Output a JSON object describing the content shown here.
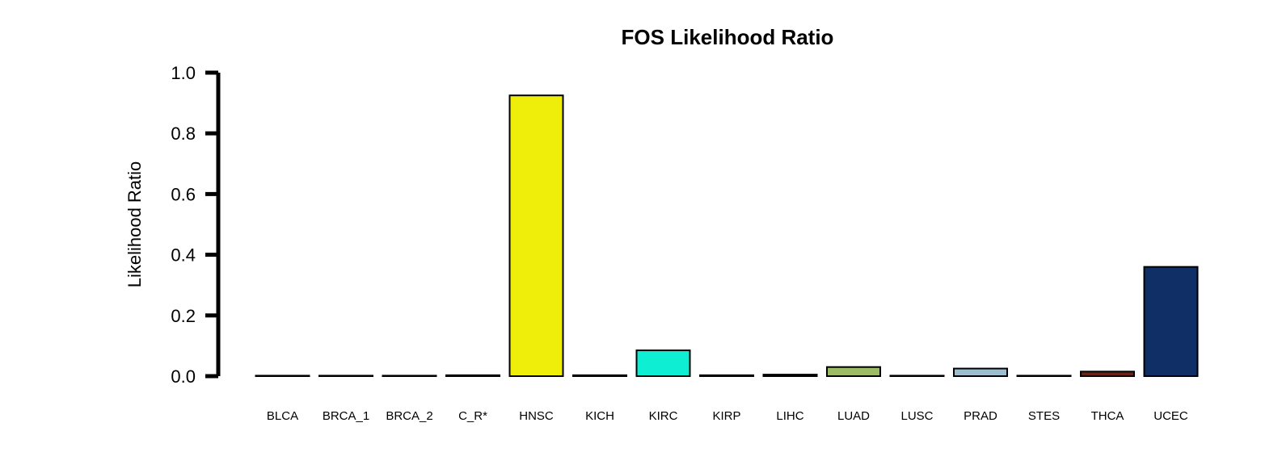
{
  "chart_data": {
    "type": "bar",
    "title": "FOS Likelihood Ratio",
    "xlabel": "",
    "ylabel": "Likelihood Ratio",
    "ylim": [
      0,
      1.0
    ],
    "yticks": [
      "0.0",
      "0.2",
      "0.4",
      "0.6",
      "0.8",
      "1.0"
    ],
    "grid": false,
    "categories": [
      "BLCA",
      "BRCA_1",
      "BRCA_2",
      "C_R*",
      "HNSC",
      "KICH",
      "KIRC",
      "KIRP",
      "LIHC",
      "LUAD",
      "LUSC",
      "PRAD",
      "STES",
      "THCA",
      "UCEC"
    ],
    "values": [
      0.001,
      0.001,
      0.001,
      0.003,
      0.925,
      0.003,
      0.085,
      0.003,
      0.005,
      0.03,
      0.001,
      0.025,
      0.001,
      0.015,
      0.36
    ],
    "colors": [
      "#000000",
      "#000000",
      "#000000",
      "#000000",
      "#EEEE0A",
      "#000000",
      "#0EEED2",
      "#000000",
      "#000000",
      "#9BBB64",
      "#000000",
      "#9DBED0",
      "#000000",
      "#6A2414",
      "#0F2F66"
    ]
  }
}
